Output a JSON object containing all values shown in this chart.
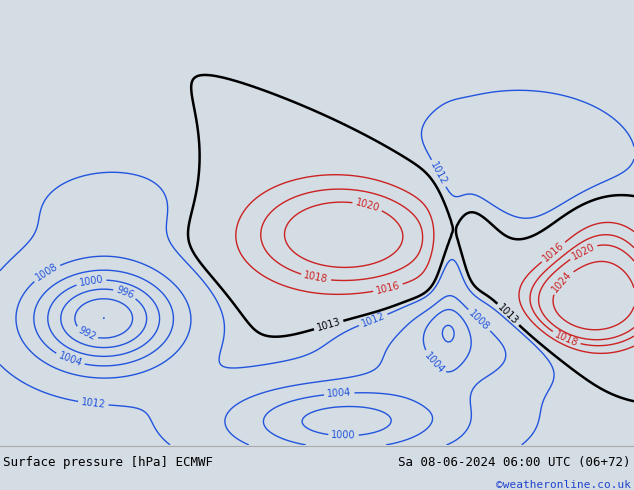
{
  "title_left": "Surface pressure [hPa] ECMWF",
  "title_right": "Sa 08-06-2024 06:00 UTC (06+72)",
  "credit": "©weatheronline.co.uk",
  "bg_color": "#d4dce4",
  "ocean_color": "#d4dce4",
  "land_color": "#c8e6b0",
  "nz_color": "#c0d8a8",
  "footer_bg": "#dcdcdc",
  "footer_line_color": "#aaaaaa",
  "figsize": [
    6.34,
    4.9
  ],
  "dpi": 100,
  "lon_min": 70,
  "lon_max": 180,
  "lat_min": -75,
  "lat_max": 20,
  "contour_levels_blue": [
    988,
    992,
    996,
    1000,
    1004,
    1008,
    1012
  ],
  "contour_levels_black": [
    1013
  ],
  "contour_levels_red": [
    1016,
    1018,
    1020,
    1024
  ],
  "label_fontsize": 7,
  "footer_fontsize": 9
}
